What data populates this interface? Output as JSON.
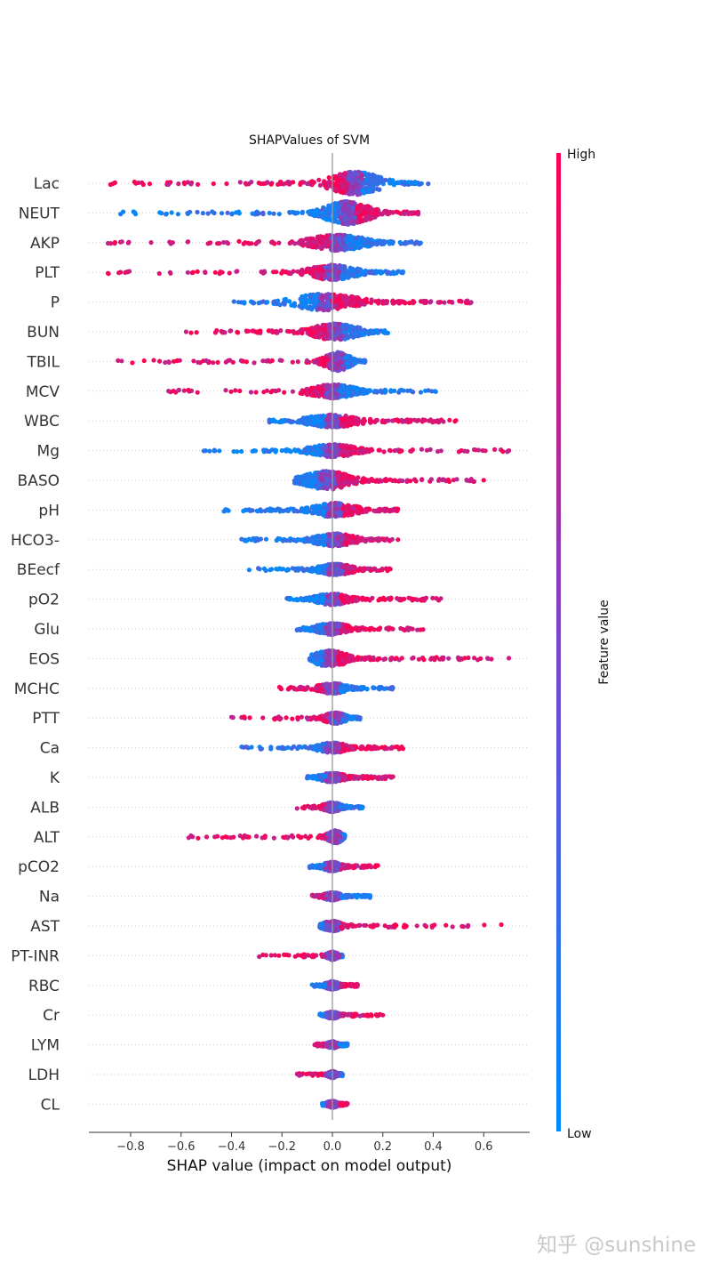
{
  "chart_data": {
    "type": "scatter",
    "subtype": "shap-beeswarm",
    "title": "SHAPValues of SVM",
    "xlabel": "SHAP value (impact on model output)",
    "xlim": [
      -0.97,
      0.78
    ],
    "xticks": [
      -0.8,
      -0.6,
      -0.4,
      -0.2,
      0.0,
      0.2,
      0.4,
      0.6
    ],
    "xtick_labels": [
      "−0.8",
      "−0.6",
      "−0.4",
      "−0.2",
      "0.0",
      "0.2",
      "0.4",
      "0.6"
    ],
    "colorbar": {
      "label": "Feature value",
      "high_label": "High",
      "low_label": "Low",
      "high_color": "#ff0051",
      "low_color": "#008bfb"
    },
    "grid": "dotted horizontal",
    "features": [
      {
        "name": "Lac",
        "neg": -0.88,
        "pos": 0.38,
        "core": [
          -0.08,
          0.16
        ],
        "mode": 0.09,
        "width": 1.0,
        "low_side": "pos"
      },
      {
        "name": "NEUT",
        "neg": -0.84,
        "pos": 0.34,
        "core": [
          -0.06,
          0.15
        ],
        "mode": 0.06,
        "width": 1.0,
        "low_side": "neg"
      },
      {
        "name": "AKP",
        "neg": -0.89,
        "pos": 0.35,
        "core": [
          -0.12,
          0.14
        ],
        "mode": 0.02,
        "width": 0.7,
        "low_side": "pos"
      },
      {
        "name": "PLT",
        "neg": -0.89,
        "pos": 0.28,
        "core": [
          -0.12,
          0.1
        ],
        "mode": 0.0,
        "width": 0.65,
        "low_side": "pos"
      },
      {
        "name": "P",
        "neg": -0.39,
        "pos": 0.55,
        "core": [
          -0.12,
          0.2
        ],
        "mode": -0.03,
        "width": 0.7,
        "low_side": "neg"
      },
      {
        "name": "BUN",
        "neg": -0.58,
        "pos": 0.22,
        "core": [
          -0.12,
          0.1
        ],
        "mode": 0.01,
        "width": 0.7,
        "low_side": "pos"
      },
      {
        "name": "TBIL",
        "neg": -0.85,
        "pos": 0.13,
        "core": [
          -0.05,
          0.07
        ],
        "mode": 0.02,
        "width": 0.8,
        "low_side": "pos"
      },
      {
        "name": "MCV",
        "neg": -0.65,
        "pos": 0.41,
        "core": [
          -0.1,
          0.12
        ],
        "mode": 0.0,
        "width": 0.6,
        "low_side": "pos"
      },
      {
        "name": "WBC",
        "neg": -0.25,
        "pos": 0.49,
        "core": [
          -0.1,
          0.15
        ],
        "mode": 0.0,
        "width": 0.55,
        "low_side": "neg"
      },
      {
        "name": "Mg",
        "neg": -0.51,
        "pos": 0.7,
        "core": [
          -0.1,
          0.12
        ],
        "mode": 0.0,
        "width": 0.55,
        "low_side": "neg"
      },
      {
        "name": "BASO",
        "neg": -0.15,
        "pos": 0.6,
        "core": [
          -0.1,
          0.12
        ],
        "mode": -0.02,
        "width": 0.8,
        "low_side": "neg"
      },
      {
        "name": "pH",
        "neg": -0.43,
        "pos": 0.26,
        "core": [
          -0.1,
          0.1
        ],
        "mode": 0.01,
        "width": 0.6,
        "low_side": "neg"
      },
      {
        "name": "HCO3-",
        "neg": -0.36,
        "pos": 0.26,
        "core": [
          -0.1,
          0.1
        ],
        "mode": 0.01,
        "width": 0.55,
        "low_side": "neg"
      },
      {
        "name": "BEecf",
        "neg": -0.33,
        "pos": 0.23,
        "core": [
          -0.08,
          0.08
        ],
        "mode": 0.01,
        "width": 0.5,
        "low_side": "neg"
      },
      {
        "name": "pO2",
        "neg": -0.18,
        "pos": 0.43,
        "core": [
          -0.06,
          0.1
        ],
        "mode": 0.0,
        "width": 0.5,
        "low_side": "neg"
      },
      {
        "name": "Glu",
        "neg": -0.14,
        "pos": 0.36,
        "core": [
          -0.06,
          0.1
        ],
        "mode": 0.0,
        "width": 0.5,
        "low_side": "neg"
      },
      {
        "name": "EOS",
        "neg": -0.09,
        "pos": 0.7,
        "core": [
          -0.06,
          0.1
        ],
        "mode": -0.01,
        "width": 0.7,
        "low_side": "neg"
      },
      {
        "name": "MCHC",
        "neg": -0.21,
        "pos": 0.24,
        "core": [
          -0.06,
          0.08
        ],
        "mode": 0.0,
        "width": 0.45,
        "low_side": "pos"
      },
      {
        "name": "PTT",
        "neg": -0.4,
        "pos": 0.11,
        "core": [
          -0.05,
          0.05
        ],
        "mode": 0.01,
        "width": 0.5,
        "low_side": "pos"
      },
      {
        "name": "Ca",
        "neg": -0.36,
        "pos": 0.28,
        "core": [
          -0.06,
          0.08
        ],
        "mode": 0.0,
        "width": 0.45,
        "low_side": "neg"
      },
      {
        "name": "K",
        "neg": -0.1,
        "pos": 0.24,
        "core": [
          -0.04,
          0.08
        ],
        "mode": 0.0,
        "width": 0.4,
        "low_side": "neg"
      },
      {
        "name": "ALB",
        "neg": -0.14,
        "pos": 0.12,
        "core": [
          -0.04,
          0.05
        ],
        "mode": 0.0,
        "width": 0.4,
        "low_side": "pos"
      },
      {
        "name": "ALT",
        "neg": -0.57,
        "pos": 0.05,
        "core": [
          -0.04,
          0.03
        ],
        "mode": 0.01,
        "width": 0.55,
        "low_side": "pos"
      },
      {
        "name": "pCO2",
        "neg": -0.09,
        "pos": 0.18,
        "core": [
          -0.03,
          0.06
        ],
        "mode": 0.0,
        "width": 0.4,
        "low_side": "neg"
      },
      {
        "name": "Na",
        "neg": -0.08,
        "pos": 0.15,
        "core": [
          -0.03,
          0.05
        ],
        "mode": 0.0,
        "width": 0.35,
        "low_side": "pos"
      },
      {
        "name": "AST",
        "neg": -0.05,
        "pos": 0.67,
        "core": [
          -0.03,
          0.06
        ],
        "mode": 0.0,
        "width": 0.45,
        "low_side": "neg"
      },
      {
        "name": "PT-INR",
        "neg": -0.29,
        "pos": 0.04,
        "core": [
          -0.03,
          0.02
        ],
        "mode": 0.0,
        "width": 0.35,
        "low_side": "pos"
      },
      {
        "name": "RBC",
        "neg": -0.08,
        "pos": 0.1,
        "core": [
          -0.03,
          0.04
        ],
        "mode": 0.0,
        "width": 0.35,
        "low_side": "neg"
      },
      {
        "name": "Cr",
        "neg": -0.05,
        "pos": 0.2,
        "core": [
          -0.02,
          0.04
        ],
        "mode": 0.0,
        "width": 0.3,
        "low_side": "neg"
      },
      {
        "name": "LYM",
        "neg": -0.07,
        "pos": 0.06,
        "core": [
          -0.02,
          0.03
        ],
        "mode": 0.0,
        "width": 0.3,
        "low_side": "pos"
      },
      {
        "name": "LDH",
        "neg": -0.14,
        "pos": 0.04,
        "core": [
          -0.02,
          0.02
        ],
        "mode": 0.0,
        "width": 0.3,
        "low_side": "pos"
      },
      {
        "name": "CL",
        "neg": -0.04,
        "pos": 0.06,
        "core": [
          -0.02,
          0.03
        ],
        "mode": 0.0,
        "width": 0.3,
        "low_side": "neg"
      }
    ]
  },
  "watermark": "知乎 @sunshine"
}
